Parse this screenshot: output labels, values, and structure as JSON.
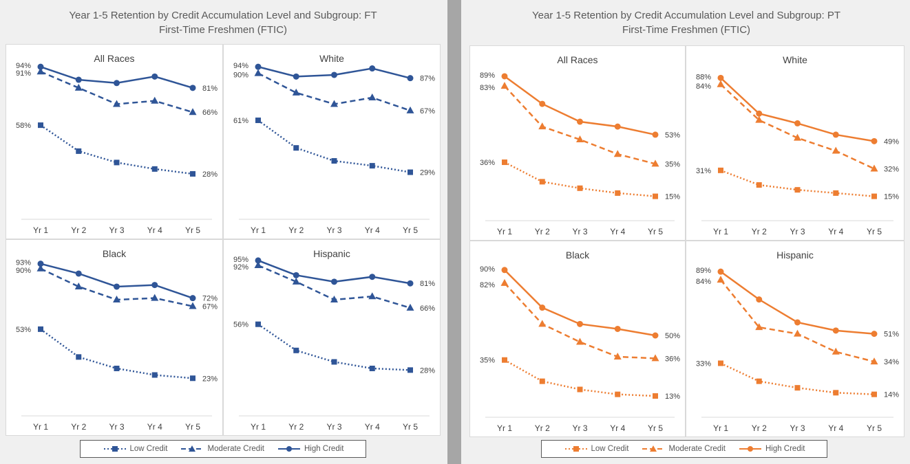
{
  "colors": {
    "ft": "#2f5597",
    "pt": "#ed7d31",
    "axis": "#d9d9d9",
    "label": "#404040"
  },
  "legend": {
    "low": "Low Credit",
    "moderate": "Moderate Credit",
    "high": "High Credit"
  },
  "panels": [
    {
      "id": "ft",
      "title_line1": "Year 1-5 Retention by Credit Accumulation Level and Subgroup: FT",
      "title_line2": "First-Time Freshmen (FTIC)"
    },
    {
      "id": "pt",
      "title_line1": "Year 1-5 Retention by Credit Accumulation Level and Subgroup: PT",
      "title_line2": "First-Time Freshmen (FTIC)"
    }
  ],
  "chart_data": [
    {
      "type": "line",
      "panel": "ft",
      "title": "All Races",
      "x": [
        "Yr 1",
        "Yr 2",
        "Yr 3",
        "Yr 4",
        "Yr 5"
      ],
      "ylim": [
        0,
        100
      ],
      "series": [
        {
          "name": "Low Credit",
          "values": [
            58,
            42,
            35,
            31,
            28
          ],
          "labels": [
            "58%",
            "",
            "",
            "",
            "28%"
          ]
        },
        {
          "name": "Moderate Credit",
          "values": [
            91,
            81,
            71,
            73,
            66
          ],
          "labels": [
            "91%",
            "",
            "",
            "",
            "66%"
          ]
        },
        {
          "name": "High Credit",
          "values": [
            94,
            86,
            84,
            88,
            81
          ],
          "labels": [
            "94%",
            "",
            "",
            "",
            "81%"
          ]
        }
      ]
    },
    {
      "type": "line",
      "panel": "ft",
      "title": "White",
      "x": [
        "Yr 1",
        "Yr 2",
        "Yr 3",
        "Yr 4",
        "Yr 5"
      ],
      "ylim": [
        0,
        100
      ],
      "series": [
        {
          "name": "Low Credit",
          "values": [
            61,
            44,
            36,
            33,
            29
          ],
          "labels": [
            "61%",
            "",
            "",
            "",
            "29%"
          ]
        },
        {
          "name": "Moderate Credit",
          "values": [
            90,
            78,
            71,
            75,
            67
          ],
          "labels": [
            "90%",
            "",
            "",
            "",
            "67%"
          ]
        },
        {
          "name": "High Credit",
          "values": [
            94,
            88,
            89,
            93,
            87
          ],
          "labels": [
            "94%",
            "",
            "",
            "",
            "87%"
          ]
        }
      ]
    },
    {
      "type": "line",
      "panel": "ft",
      "title": "Black",
      "x": [
        "Yr 1",
        "Yr 2",
        "Yr 3",
        "Yr 4",
        "Yr 5"
      ],
      "ylim": [
        0,
        100
      ],
      "series": [
        {
          "name": "Low Credit",
          "values": [
            53,
            36,
            29,
            25,
            23
          ],
          "labels": [
            "53%",
            "",
            "",
            "",
            "23%"
          ]
        },
        {
          "name": "Moderate Credit",
          "values": [
            90,
            79,
            71,
            72,
            67
          ],
          "labels": [
            "90%",
            "",
            "",
            "",
            "67%"
          ]
        },
        {
          "name": "High Credit",
          "values": [
            93,
            87,
            79,
            80,
            72
          ],
          "labels": [
            "93%",
            "",
            "",
            "",
            "72%"
          ]
        }
      ]
    },
    {
      "type": "line",
      "panel": "ft",
      "title": "Hispanic",
      "x": [
        "Yr 1",
        "Yr 2",
        "Yr 3",
        "Yr 4",
        "Yr 5"
      ],
      "ylim": [
        0,
        100
      ],
      "series": [
        {
          "name": "Low Credit",
          "values": [
            56,
            40,
            33,
            29,
            28
          ],
          "labels": [
            "56%",
            "",
            "",
            "",
            "28%"
          ]
        },
        {
          "name": "Moderate Credit",
          "values": [
            92,
            82,
            71,
            73,
            66
          ],
          "labels": [
            "92%",
            "",
            "",
            "",
            "66%"
          ]
        },
        {
          "name": "High Credit",
          "values": [
            95,
            86,
            82,
            85,
            81
          ],
          "labels": [
            "95%",
            "",
            "",
            "",
            "81%"
          ]
        }
      ]
    },
    {
      "type": "line",
      "panel": "pt",
      "title": "All Races",
      "x": [
        "Yr 1",
        "Yr 2",
        "Yr 3",
        "Yr 4",
        "Yr 5"
      ],
      "ylim": [
        0,
        100
      ],
      "series": [
        {
          "name": "Low Credit",
          "values": [
            36,
            24,
            20,
            17,
            15
          ],
          "labels": [
            "36%",
            "",
            "",
            "",
            "15%"
          ]
        },
        {
          "name": "Moderate Credit",
          "values": [
            83,
            58,
            50,
            41,
            35
          ],
          "labels": [
            "83%",
            "",
            "",
            "",
            "35%"
          ]
        },
        {
          "name": "High Credit",
          "values": [
            89,
            72,
            61,
            58,
            53
          ],
          "labels": [
            "89%",
            "",
            "",
            "",
            "53%"
          ]
        }
      ]
    },
    {
      "type": "line",
      "panel": "pt",
      "title": "White",
      "x": [
        "Yr 1",
        "Yr 2",
        "Yr 3",
        "Yr 4",
        "Yr 5"
      ],
      "ylim": [
        0,
        100
      ],
      "series": [
        {
          "name": "Low Credit",
          "values": [
            31,
            22,
            19,
            17,
            15
          ],
          "labels": [
            "31%",
            "",
            "",
            "",
            "15%"
          ]
        },
        {
          "name": "Moderate Credit",
          "values": [
            84,
            62,
            51,
            43,
            32
          ],
          "labels": [
            "84%",
            "",
            "",
            "",
            "32%"
          ]
        },
        {
          "name": "High Credit",
          "values": [
            88,
            66,
            60,
            53,
            49
          ],
          "labels": [
            "88%",
            "",
            "",
            "",
            "49%"
          ]
        }
      ]
    },
    {
      "type": "line",
      "panel": "pt",
      "title": "Black",
      "x": [
        "Yr 1",
        "Yr 2",
        "Yr 3",
        "Yr 4",
        "Yr 5"
      ],
      "ylim": [
        0,
        100
      ],
      "series": [
        {
          "name": "Low Credit",
          "values": [
            35,
            22,
            17,
            14,
            13
          ],
          "labels": [
            "35%",
            "",
            "",
            "",
            "13%"
          ]
        },
        {
          "name": "Moderate Credit",
          "values": [
            82,
            57,
            46,
            37,
            36
          ],
          "labels": [
            "82%",
            "",
            "",
            "",
            "36%"
          ]
        },
        {
          "name": "High Credit",
          "values": [
            90,
            67,
            57,
            54,
            50
          ],
          "labels": [
            "90%",
            "",
            "",
            "",
            "50%"
          ]
        }
      ]
    },
    {
      "type": "line",
      "panel": "pt",
      "title": "Hispanic",
      "x": [
        "Yr 1",
        "Yr 2",
        "Yr 3",
        "Yr 4",
        "Yr 5"
      ],
      "ylim": [
        0,
        100
      ],
      "series": [
        {
          "name": "Low Credit",
          "values": [
            33,
            22,
            18,
            15,
            14
          ],
          "labels": [
            "33%",
            "",
            "",
            "",
            "14%"
          ]
        },
        {
          "name": "Moderate Credit",
          "values": [
            84,
            55,
            51,
            40,
            34
          ],
          "labels": [
            "84%",
            "",
            "",
            "",
            "34%"
          ]
        },
        {
          "name": "High Credit",
          "values": [
            89,
            72,
            58,
            53,
            51
          ],
          "labels": [
            "89%",
            "",
            "",
            "",
            "51%"
          ]
        }
      ]
    }
  ]
}
